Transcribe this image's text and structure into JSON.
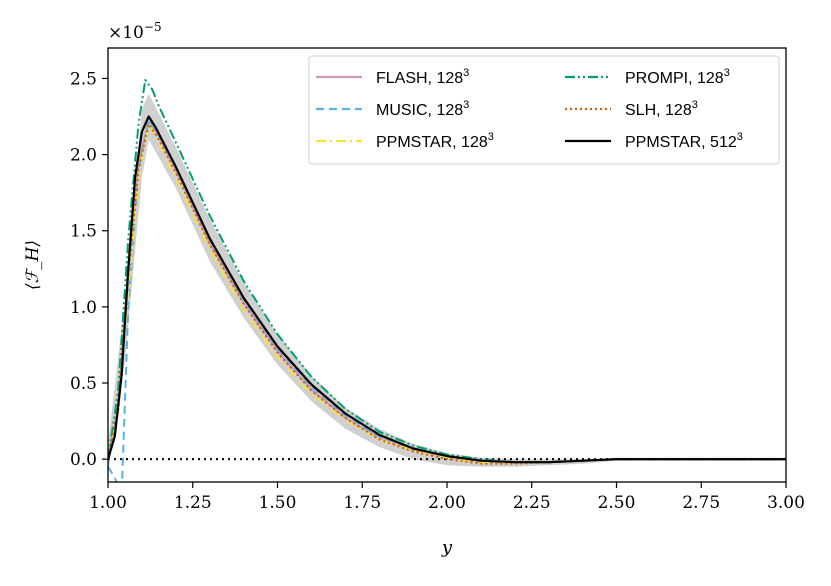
{
  "chart_data": {
    "type": "line",
    "title": "",
    "xlabel": "y",
    "ylabel": "⟨ℱ_H⟩",
    "y_scale_label": "×10",
    "y_scale_exponent": "−5",
    "xlim": [
      1.0,
      3.0
    ],
    "ylim": [
      -0.15,
      2.7
    ],
    "x_ticks": [
      1.0,
      1.25,
      1.5,
      1.75,
      2.0,
      2.25,
      2.5,
      2.75,
      3.0
    ],
    "x_tick_labels": [
      "1.00",
      "1.25",
      "1.50",
      "1.75",
      "2.00",
      "2.25",
      "2.50",
      "2.75",
      "3.00"
    ],
    "y_ticks": [
      0.0,
      0.5,
      1.0,
      1.5,
      2.0,
      2.5
    ],
    "y_tick_labels": [
      "0.0",
      "0.5",
      "1.0",
      "1.5",
      "2.0",
      "2.5"
    ],
    "grid": false,
    "legend_position": "top-right",
    "zero_line": {
      "y": 0,
      "style": "dotted",
      "color": "#000000"
    },
    "shaded_band": {
      "color": "#c8c8c8",
      "x": [
        1.0,
        1.05,
        1.1,
        1.12,
        1.2,
        1.3,
        1.4,
        1.5,
        1.6,
        1.7,
        1.8,
        1.9,
        2.0,
        2.1,
        2.2,
        2.3,
        2.4,
        2.5,
        2.75,
        3.0
      ],
      "lower": [
        -0.1,
        0.65,
        1.85,
        2.1,
        1.78,
        1.3,
        0.93,
        0.62,
        0.38,
        0.2,
        0.08,
        0.0,
        -0.04,
        -0.05,
        -0.05,
        -0.04,
        -0.03,
        -0.01,
        -0.01,
        -0.01
      ],
      "upper": [
        0.1,
        1.05,
        2.3,
        2.4,
        2.05,
        1.58,
        1.16,
        0.82,
        0.55,
        0.34,
        0.2,
        0.1,
        0.04,
        0.01,
        0.0,
        0.0,
        0.0,
        0.01,
        0.01,
        0.01
      ]
    },
    "series": [
      {
        "name": "FLASH, 128",
        "superscript": "3",
        "color": "#cc99bb",
        "dash": "",
        "x": [
          1.0,
          1.03,
          1.06,
          1.09,
          1.12,
          1.15,
          1.2,
          1.3,
          1.4,
          1.5,
          1.6,
          1.7,
          1.8,
          1.9,
          2.0,
          2.1,
          2.2,
          2.3,
          2.4,
          2.5,
          2.75,
          3.0
        ],
        "values": [
          -0.02,
          0.35,
          1.25,
          1.95,
          2.22,
          2.12,
          1.9,
          1.42,
          1.03,
          0.71,
          0.46,
          0.27,
          0.14,
          0.06,
          0.01,
          -0.02,
          -0.02,
          -0.02,
          -0.01,
          0.0,
          0.0,
          0.0
        ]
      },
      {
        "name": "MUSIC, 128",
        "superscript": "3",
        "color": "#56b4e9",
        "dash": "8,5",
        "x": [
          1.0,
          1.02,
          1.04,
          1.06,
          1.09,
          1.12,
          1.15,
          1.2,
          1.3,
          1.4,
          1.5,
          1.6,
          1.7,
          1.8,
          1.9,
          2.0,
          2.1,
          2.2,
          2.3,
          2.4,
          2.5,
          2.75,
          3.0
        ],
        "values": [
          -0.05,
          -0.12,
          -0.25,
          1.0,
          1.9,
          2.23,
          2.13,
          1.92,
          1.45,
          1.05,
          0.73,
          0.48,
          0.29,
          0.15,
          0.07,
          0.02,
          -0.01,
          -0.02,
          -0.02,
          -0.01,
          0.0,
          0.0,
          0.0
        ]
      },
      {
        "name": "PPMSTAR, 128",
        "superscript": "3",
        "color": "#f0e442",
        "dash": "10,4,2,4",
        "x": [
          1.0,
          1.03,
          1.06,
          1.09,
          1.12,
          1.15,
          1.2,
          1.3,
          1.4,
          1.5,
          1.6,
          1.7,
          1.8,
          1.9,
          2.0,
          2.1,
          2.2,
          2.3,
          2.4,
          2.5,
          2.75,
          3.0
        ],
        "values": [
          0.0,
          0.3,
          1.1,
          1.85,
          2.2,
          2.08,
          1.85,
          1.38,
          0.98,
          0.67,
          0.43,
          0.26,
          0.13,
          0.06,
          0.01,
          -0.02,
          -0.02,
          -0.02,
          -0.01,
          0.0,
          0.0,
          0.0
        ]
      },
      {
        "name": "PROMPI, 128",
        "superscript": "3",
        "color": "#009e73",
        "dash": "10,3,2,3,2,3",
        "x": [
          1.0,
          1.03,
          1.06,
          1.09,
          1.11,
          1.13,
          1.15,
          1.2,
          1.3,
          1.4,
          1.5,
          1.6,
          1.7,
          1.8,
          1.9,
          2.0,
          2.1,
          2.2,
          2.3,
          2.4,
          2.5,
          2.75,
          3.0
        ],
        "values": [
          0.0,
          0.45,
          1.45,
          2.2,
          2.49,
          2.43,
          2.32,
          2.08,
          1.6,
          1.17,
          0.82,
          0.54,
          0.33,
          0.18,
          0.09,
          0.03,
          0.0,
          -0.02,
          -0.02,
          -0.01,
          0.0,
          0.0,
          0.0
        ]
      },
      {
        "name": "SLH, 128",
        "superscript": "3",
        "color": "#d55e00",
        "dash": "2,3",
        "x": [
          1.0,
          1.03,
          1.06,
          1.09,
          1.12,
          1.15,
          1.2,
          1.3,
          1.4,
          1.5,
          1.6,
          1.7,
          1.8,
          1.9,
          2.0,
          2.1,
          2.2,
          2.3,
          2.4,
          2.5,
          2.75,
          3.0
        ],
        "values": [
          0.0,
          0.32,
          1.2,
          1.9,
          2.2,
          2.1,
          1.88,
          1.41,
          1.02,
          0.7,
          0.45,
          0.27,
          0.13,
          0.05,
          0.0,
          -0.03,
          -0.03,
          -0.02,
          -0.01,
          0.0,
          0.0,
          0.0
        ]
      },
      {
        "name": "PPMSTAR, 512",
        "superscript": "3",
        "color": "#000000",
        "dash": "",
        "x": [
          1.0,
          1.02,
          1.04,
          1.06,
          1.08,
          1.1,
          1.12,
          1.14,
          1.2,
          1.3,
          1.4,
          1.5,
          1.6,
          1.7,
          1.8,
          1.9,
          2.0,
          2.1,
          2.2,
          2.3,
          2.4,
          2.5,
          2.75,
          3.0
        ],
        "values": [
          0.0,
          0.15,
          0.55,
          1.25,
          1.85,
          2.15,
          2.25,
          2.18,
          1.92,
          1.45,
          1.06,
          0.74,
          0.49,
          0.3,
          0.16,
          0.07,
          0.02,
          -0.01,
          -0.02,
          -0.02,
          -0.01,
          0.0,
          0.0,
          0.0
        ]
      }
    ]
  }
}
